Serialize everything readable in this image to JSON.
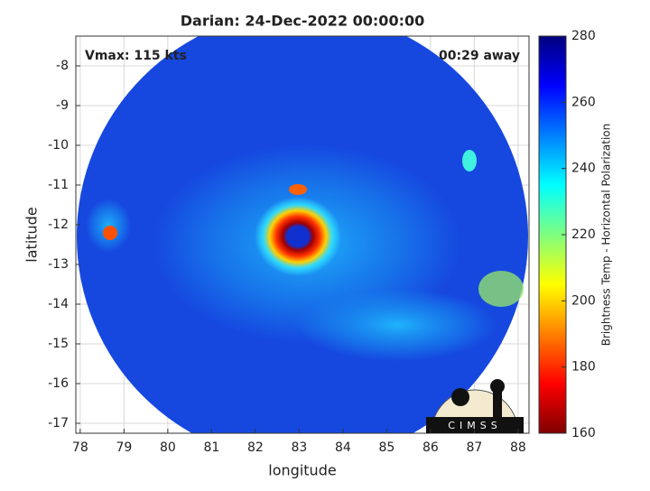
{
  "chart_data": {
    "type": "image",
    "title": "Darian: 24-Dec-2022 00:00:00",
    "annotations": [
      "Vmax: 115 kts",
      "00:29 away"
    ],
    "x_label": "longitude",
    "y_label": "latitude",
    "xlim": [
      77.9,
      88.25
    ],
    "xticks": [
      78,
      79,
      80,
      81,
      82,
      83,
      84,
      85,
      86,
      87,
      88
    ],
    "ylim": [
      -17.25,
      -7.25
    ],
    "yticks": [
      -8,
      -9,
      -10,
      -11,
      -12,
      -13,
      -14,
      -15,
      -16,
      -17
    ],
    "grid": true,
    "colorbar": {
      "label": "Brightness Temp - Horizontal Polarization",
      "lim": [
        160,
        280
      ],
      "ticks": [
        160,
        180,
        200,
        220,
        240,
        260,
        280
      ]
    },
    "logo": "CIMSS"
  }
}
